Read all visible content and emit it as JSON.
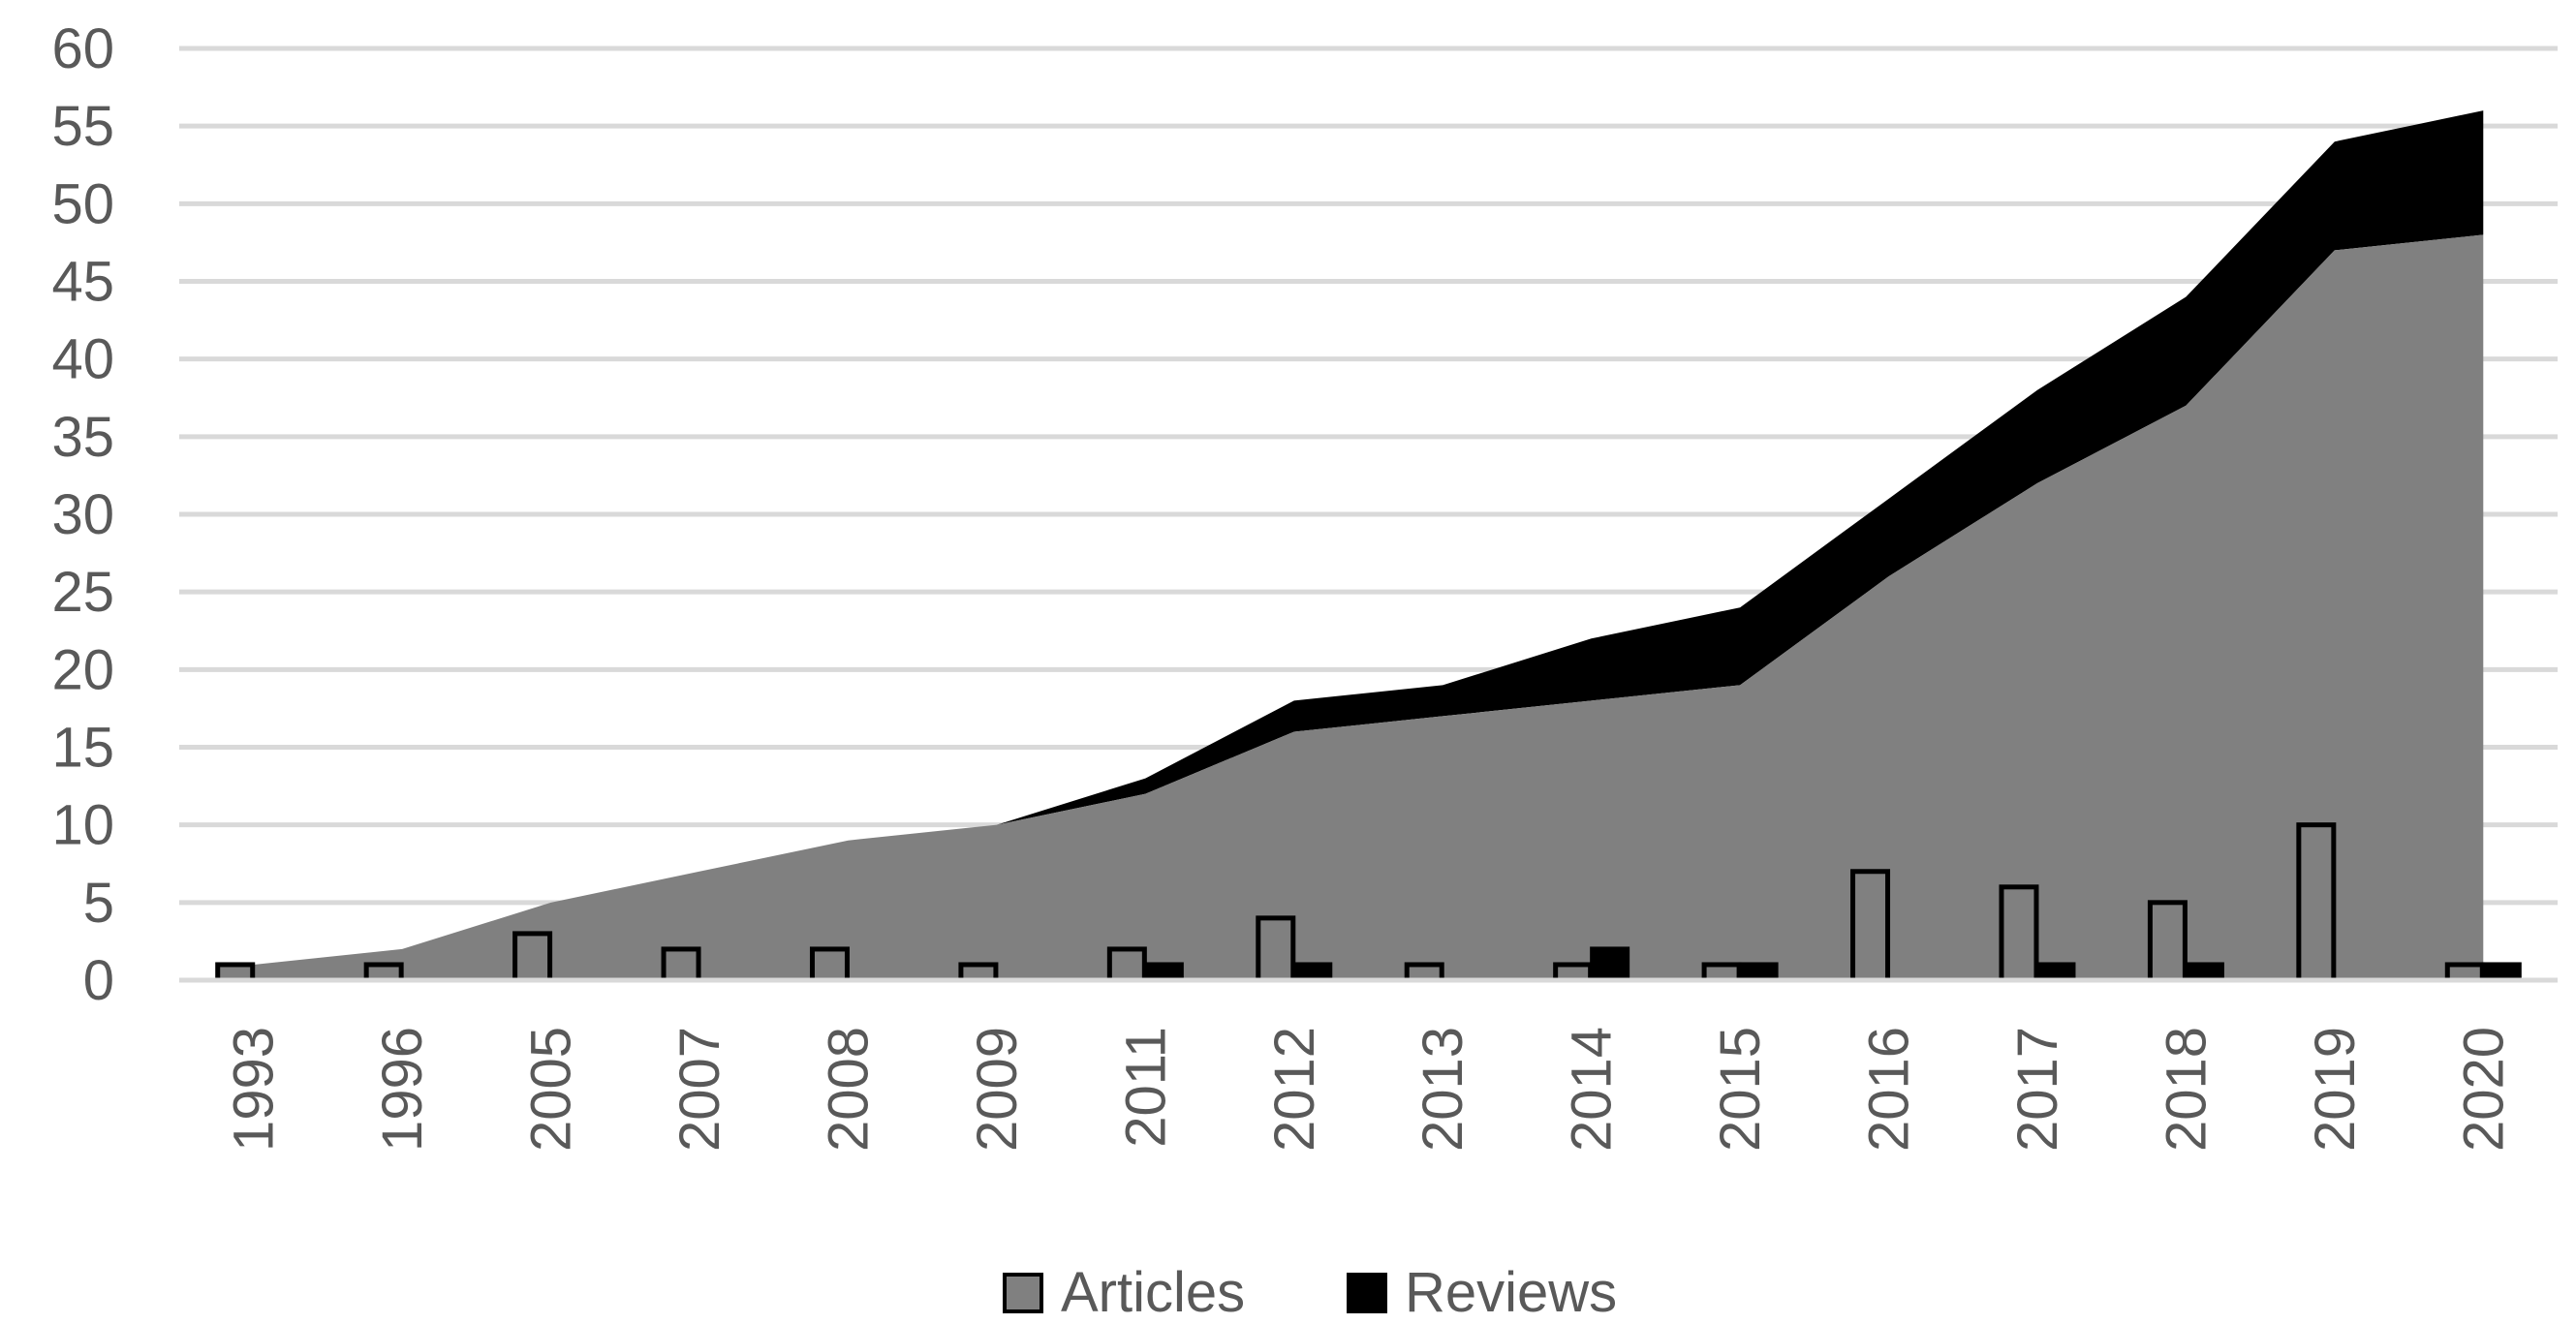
{
  "chart_data": {
    "type": "bar",
    "categories": [
      "1993",
      "1996",
      "2005",
      "2007",
      "2008",
      "2009",
      "2011",
      "2012",
      "2013",
      "2014",
      "2015",
      "2016",
      "2017",
      "2018",
      "2019",
      "2020"
    ],
    "series": [
      {
        "name": "Articles",
        "type": "bar",
        "values": [
          1,
          1,
          3,
          2,
          2,
          1,
          2,
          4,
          1,
          1,
          1,
          7,
          6,
          5,
          10,
          1
        ],
        "color": "#808080"
      },
      {
        "name": "Reviews",
        "type": "bar",
        "values": [
          0,
          0,
          0,
          0,
          0,
          0,
          1,
          1,
          0,
          2,
          1,
          0,
          1,
          1,
          0,
          1
        ],
        "color": "#000000"
      }
    ],
    "cumulative_area": {
      "articles_total": [
        1,
        2,
        5,
        7,
        9,
        10,
        12,
        16,
        17,
        18,
        19,
        26,
        32,
        37,
        47,
        48
      ],
      "all_total": [
        1,
        2,
        5,
        7,
        9,
        10,
        13,
        18,
        19,
        22,
        24,
        31,
        38,
        44,
        54,
        56
      ],
      "articles_color": "#808080",
      "reviews_color": "#000000"
    },
    "ylim": [
      0,
      60
    ],
    "yticks": [
      0,
      5,
      10,
      15,
      20,
      25,
      30,
      35,
      40,
      45,
      50,
      55,
      60
    ],
    "grid": true,
    "legend": {
      "position": "bottom",
      "items": [
        {
          "label": "Articles",
          "color": "#808080"
        },
        {
          "label": "Reviews",
          "color": "#000000"
        }
      ]
    },
    "title": "",
    "xlabel": "",
    "ylabel": ""
  }
}
